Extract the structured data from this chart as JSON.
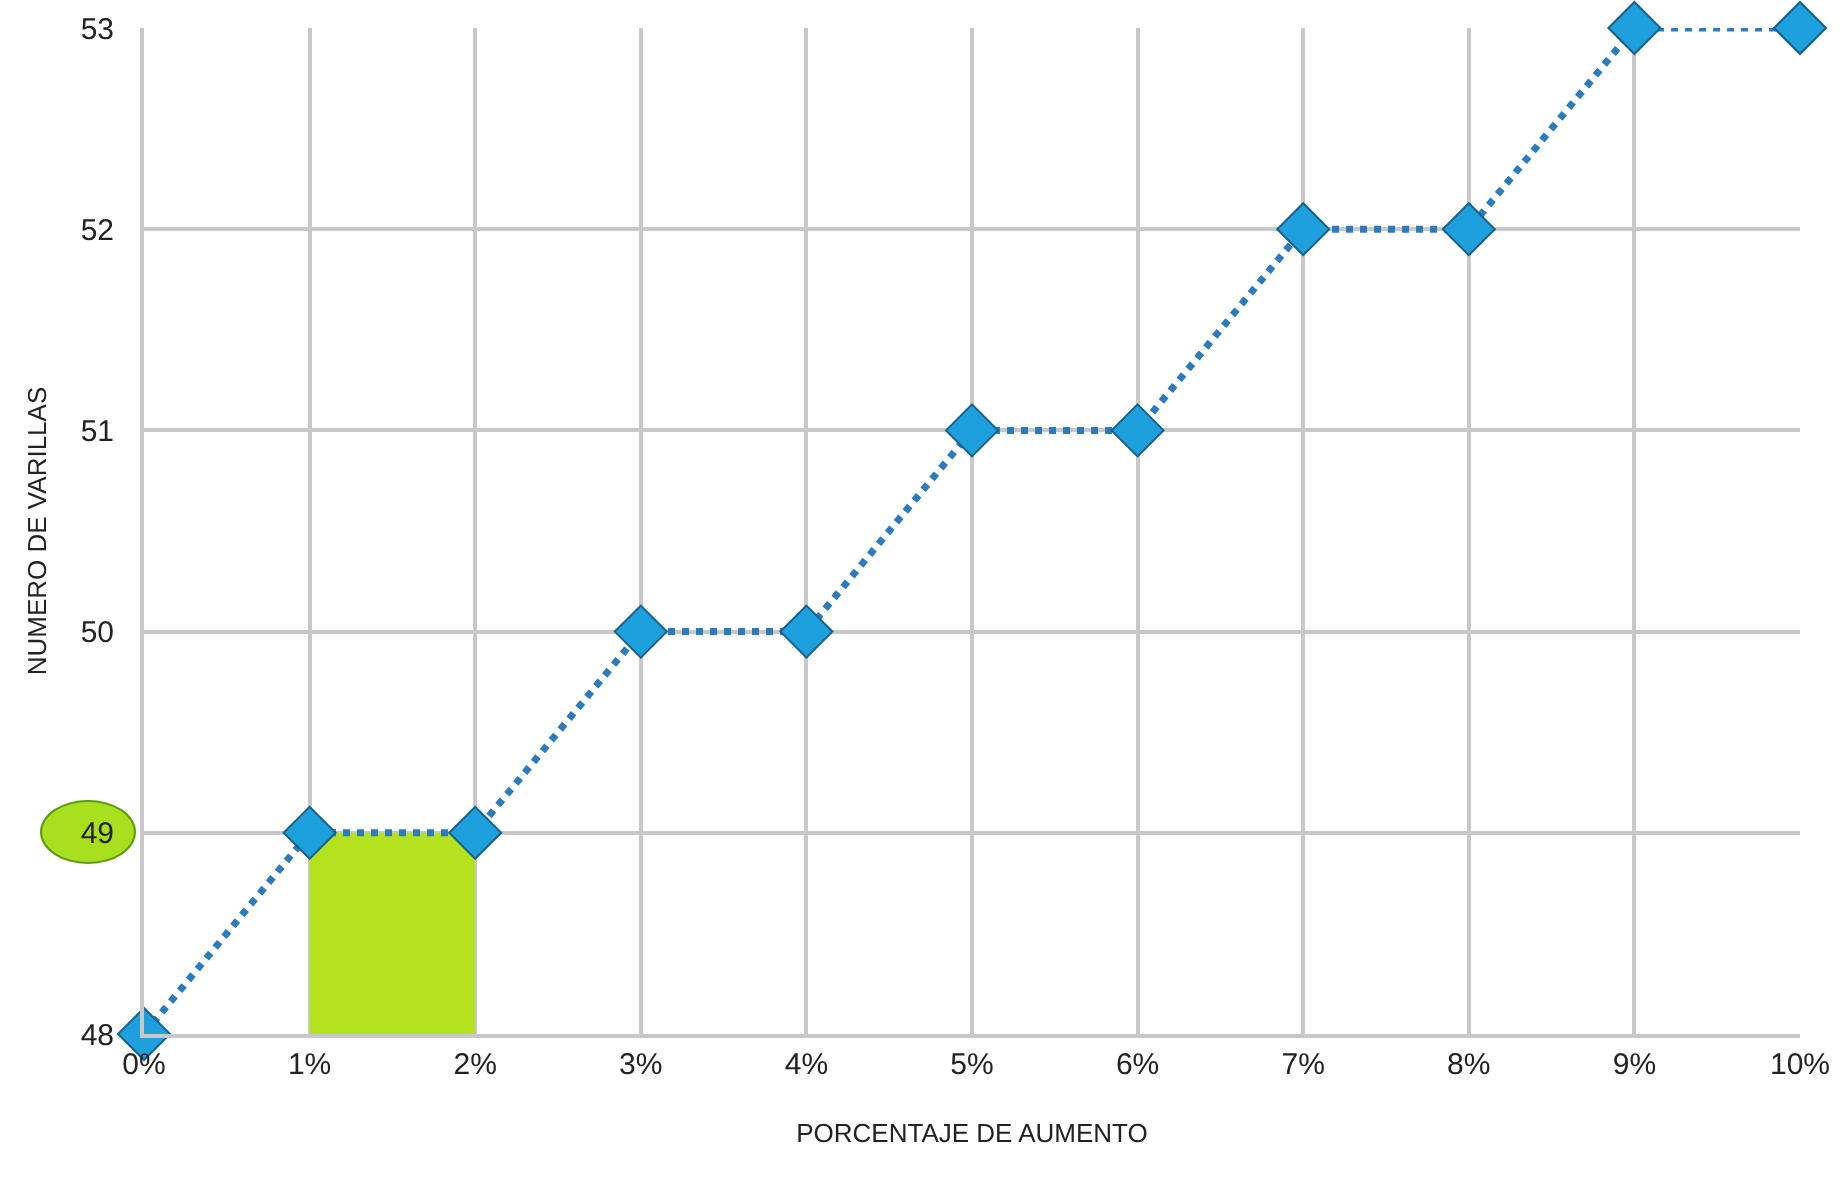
{
  "chart_data": {
    "type": "line",
    "xlabel": "PORCENTAJE DE AUMENTO",
    "ylabel": "NUMERO DE VARILLAS",
    "series": [
      {
        "type": "bar",
        "x": [
          1.5
        ],
        "base": [
          48
        ],
        "values": [
          1
        ],
        "color": "#b5e21f"
      },
      {
        "x": [
          0,
          1,
          2,
          3,
          4,
          5,
          6,
          7,
          8,
          9,
          10
        ],
        "values": [
          48,
          49,
          49,
          50,
          50,
          51,
          51,
          52,
          52,
          53,
          53
        ],
        "color": "#2a7bbf",
        "marker": "diamond",
        "line_style": "dotted"
      }
    ],
    "xlim": [
      0,
      10
    ],
    "xticks": [
      {
        "value": 0,
        "label": "0%"
      },
      {
        "value": 1,
        "label": "1%"
      },
      {
        "value": 2,
        "label": "2%"
      },
      {
        "value": 3,
        "label": "3%"
      },
      {
        "value": 4,
        "label": "4%"
      },
      {
        "value": 5,
        "label": "5%"
      },
      {
        "value": 6,
        "label": "6%"
      },
      {
        "value": 7,
        "label": "7%"
      },
      {
        "value": 8,
        "label": "8%"
      },
      {
        "value": 9,
        "label": "9%"
      },
      {
        "value": 10,
        "label": "10%"
      }
    ],
    "ylim": [
      48,
      53
    ],
    "yticks": [
      48,
      49,
      50,
      51,
      52,
      53
    ],
    "grid": true
  }
}
